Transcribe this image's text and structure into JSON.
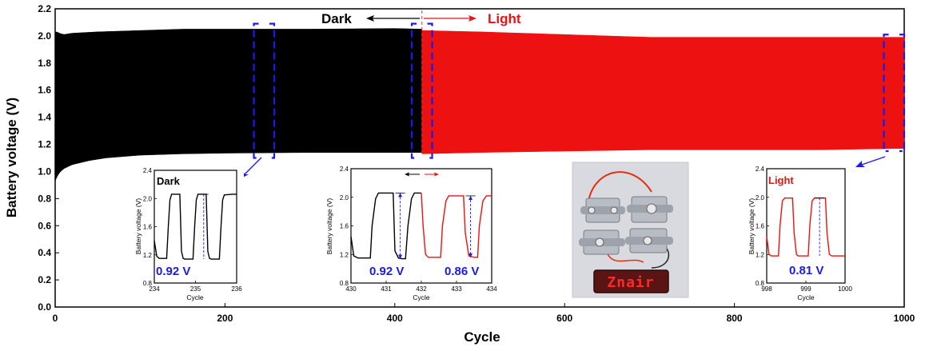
{
  "colors": {
    "dark": "#000000",
    "light": "#ee1111",
    "annotation": "#1a1aee"
  },
  "chart_data": [
    {
      "type": "area",
      "xlabel": "Cycle",
      "ylabel": "Battery voltage (V)",
      "xlim": [
        0,
        1000
      ],
      "ylim": [
        0.0,
        2.2
      ],
      "xticks": [
        "0",
        "200",
        "400",
        "600",
        "800",
        "1000"
      ],
      "yticks": [
        "0.0",
        "0.2",
        "0.4",
        "0.6",
        "0.8",
        "1.0",
        "1.2",
        "1.4",
        "1.6",
        "1.8",
        "2.0",
        "2.2"
      ],
      "divider_cycle": 432,
      "labels": {
        "dark": "Dark",
        "light": "Light"
      },
      "series": [
        {
          "name": "Dark",
          "upper": {
            "x": [
              0,
              1,
              2,
              5,
              10,
              20,
              50,
              100,
              150,
              200,
              300,
              400,
              432
            ],
            "y": [
              2.03,
              2.05,
              2.03,
              2.02,
              2.01,
              2.02,
              2.03,
              2.04,
              2.05,
              2.05,
              2.05,
              2.055,
              2.05
            ]
          },
          "lower": {
            "x": [
              0,
              2,
              5,
              10,
              20,
              40,
              60,
              100,
              150,
              200,
              300,
              400,
              432
            ],
            "y": [
              0.93,
              0.96,
              0.99,
              1.02,
              1.05,
              1.08,
              1.1,
              1.12,
              1.13,
              1.135,
              1.14,
              1.14,
              1.14
            ]
          }
        },
        {
          "name": "Light",
          "upper": {
            "x": [
              432,
              500,
              600,
              700,
              800,
              900,
              1000
            ],
            "y": [
              2.04,
              2.03,
              2.01,
              1.99,
              1.99,
              1.99,
              1.99
            ]
          },
          "lower": {
            "x": [
              432,
              500,
              600,
              700,
              800,
              900,
              1000
            ],
            "y": [
              1.13,
              1.14,
              1.15,
              1.16,
              1.16,
              1.16,
              1.17
            ]
          }
        }
      ],
      "zoom_boxes": [
        {
          "x": [
            234,
            258
          ],
          "y": [
            1.1,
            2.09
          ]
        },
        {
          "x": [
            420,
            444
          ],
          "y": [
            1.1,
            2.09
          ]
        },
        {
          "x": [
            976,
            1000
          ],
          "y": [
            1.15,
            2.01
          ]
        }
      ]
    },
    {
      "type": "line",
      "title": "Dark",
      "xlabel": "Cycle",
      "ylabel": "Battery voltage (V)",
      "xlim": [
        234,
        236
      ],
      "ylim": [
        0.8,
        2.4
      ],
      "xticks": [
        "234",
        "235",
        "236"
      ],
      "yticks": [
        "0.8",
        "1.2",
        "1.6",
        "2.0",
        "2.4"
      ],
      "annotation": "0.92 V",
      "series": [
        {
          "name": "Dark",
          "x": [
            234.0,
            234.06,
            234.12,
            234.3,
            234.34,
            234.38,
            234.42,
            234.62,
            234.66,
            234.7,
            234.74,
            234.94,
            234.98,
            235.02,
            235.06,
            235.26,
            235.3,
            235.34,
            235.38,
            235.58,
            235.62,
            235.66,
            235.7,
            235.9,
            235.94,
            236.0
          ],
          "y": [
            1.4,
            1.18,
            1.15,
            1.15,
            1.6,
            1.98,
            2.06,
            2.06,
            1.25,
            1.15,
            1.14,
            1.14,
            1.6,
            1.98,
            2.06,
            2.06,
            1.25,
            1.15,
            1.14,
            1.14,
            1.6,
            1.98,
            2.05,
            2.06,
            2.06,
            2.06
          ]
        }
      ]
    },
    {
      "type": "line",
      "title": "",
      "xlabel": "Cycle",
      "ylabel": "Battery voltage (V)",
      "xlim": [
        430,
        434
      ],
      "ylim": [
        0.8,
        2.4
      ],
      "xticks": [
        "430",
        "431",
        "432",
        "433",
        "434"
      ],
      "yticks": [
        "0.8",
        "1.2",
        "1.6",
        "2.0",
        "2.4"
      ],
      "annotations": [
        "0.92 V",
        "0.86 V"
      ],
      "series": [
        {
          "name": "Dark",
          "x": [
            430.0,
            430.08,
            430.2,
            430.55,
            430.6,
            430.7,
            430.78,
            431.2,
            431.25,
            431.35,
            431.45,
            431.55,
            431.62,
            431.72,
            431.8,
            432.0
          ],
          "y": [
            1.45,
            1.18,
            1.15,
            1.15,
            1.6,
            1.98,
            2.06,
            2.06,
            1.25,
            1.15,
            1.14,
            1.14,
            1.6,
            1.98,
            2.06,
            2.06
          ]
        },
        {
          "name": "Light",
          "x": [
            432.0,
            432.05,
            432.12,
            432.2,
            432.55,
            432.6,
            432.7,
            432.78,
            433.2,
            433.25,
            433.35,
            433.5,
            433.6,
            433.65,
            433.75,
            433.85,
            434.0
          ],
          "y": [
            2.06,
            1.6,
            1.2,
            1.16,
            1.16,
            1.6,
            1.95,
            2.02,
            2.02,
            1.5,
            1.18,
            1.16,
            1.16,
            1.6,
            1.95,
            2.02,
            2.02
          ]
        }
      ]
    },
    {
      "type": "line",
      "title": "Light",
      "xlabel": "Cycle",
      "ylabel": "Battery voltage (V)",
      "xlim": [
        998,
        1000
      ],
      "ylim": [
        0.8,
        2.4
      ],
      "xticks": [
        "998",
        "999",
        "1000"
      ],
      "yticks": [
        "0.8",
        "1.2",
        "1.6",
        "2.0",
        "2.4"
      ],
      "annotation": "0.81 V",
      "series": [
        {
          "name": "Light",
          "x": [
            998.0,
            998.06,
            998.12,
            998.3,
            998.34,
            998.4,
            998.46,
            998.66,
            998.7,
            998.76,
            998.8,
            999.06,
            999.1,
            999.16,
            999.22,
            999.5,
            999.54,
            999.6,
            999.66,
            999.9,
            1000.0
          ],
          "y": [
            1.45,
            1.2,
            1.18,
            1.18,
            1.6,
            1.95,
            1.99,
            1.99,
            1.5,
            1.2,
            1.18,
            1.18,
            1.6,
            1.95,
            1.99,
            1.99,
            1.5,
            1.2,
            1.18,
            1.18,
            1.18
          ]
        }
      ]
    }
  ],
  "photo": {
    "display_text": "Znair"
  }
}
